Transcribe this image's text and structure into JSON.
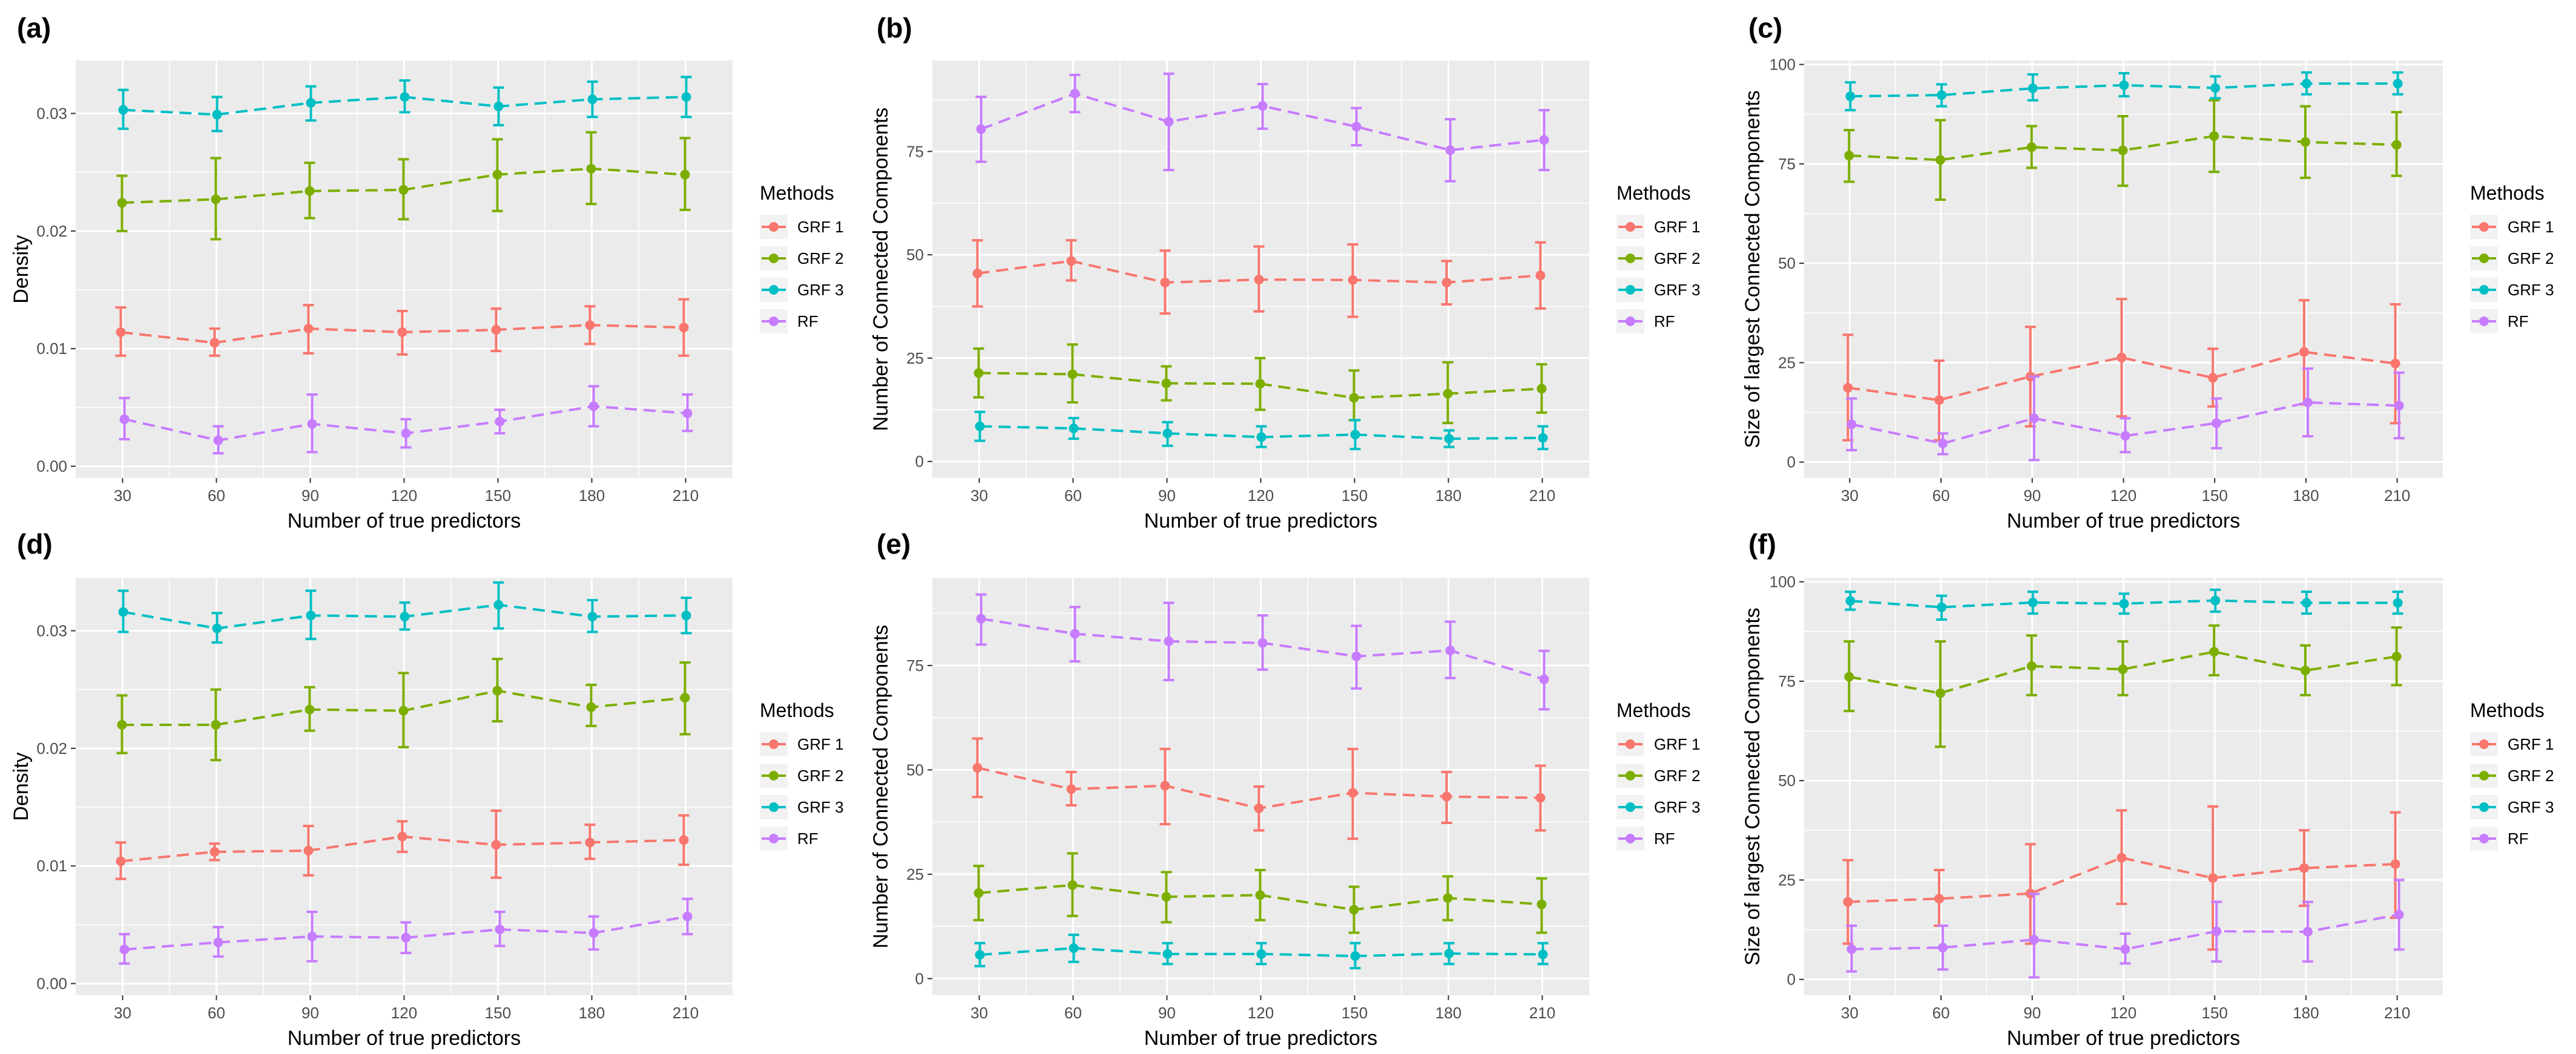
{
  "legend": {
    "title": "Methods",
    "entries": [
      "GRF 1",
      "GRF 2",
      "GRF 3",
      "RF"
    ]
  },
  "colors": {
    "GRF 1": "#F8766D",
    "GRF 2": "#7CAE00",
    "GRF 3": "#00BFC4",
    "RF": "#C77CFF",
    "panel_bg": "#EBEBEB",
    "grid": "#FFFFFF"
  },
  "chart_data": [
    {
      "panel_label": "(a)",
      "type": "line",
      "xlabel": "Number of true predictors",
      "ylabel": "Density",
      "categories": [
        30,
        60,
        90,
        120,
        150,
        180,
        210
      ],
      "ylim": [
        -0.001,
        0.0345
      ],
      "yticks": [
        0.0,
        0.01,
        0.02,
        0.03
      ],
      "ytick_labels": [
        "0.00",
        "0.01",
        "0.02",
        "0.03"
      ],
      "series": [
        {
          "name": "GRF 1",
          "values": [
            0.0114,
            0.0105,
            0.0117,
            0.0114,
            0.0116,
            0.012,
            0.0118
          ],
          "lower": [
            0.0094,
            0.0094,
            0.0096,
            0.0095,
            0.0098,
            0.0104,
            0.0094
          ],
          "upper": [
            0.0135,
            0.0117,
            0.0137,
            0.0132,
            0.0134,
            0.0136,
            0.0142
          ]
        },
        {
          "name": "GRF 2",
          "values": [
            0.0224,
            0.0227,
            0.0234,
            0.0235,
            0.0248,
            0.0253,
            0.0248
          ],
          "lower": [
            0.02,
            0.0193,
            0.0211,
            0.021,
            0.0217,
            0.0223,
            0.0218
          ],
          "upper": [
            0.0247,
            0.0262,
            0.0258,
            0.0261,
            0.0278,
            0.0284,
            0.0279
          ]
        },
        {
          "name": "GRF 3",
          "values": [
            0.0303,
            0.0299,
            0.0309,
            0.0314,
            0.0306,
            0.0312,
            0.0314
          ],
          "lower": [
            0.0287,
            0.0285,
            0.0294,
            0.0301,
            0.029,
            0.0297,
            0.0297
          ],
          "upper": [
            0.032,
            0.0314,
            0.0323,
            0.0328,
            0.0322,
            0.0327,
            0.0331
          ]
        },
        {
          "name": "RF",
          "values": [
            0.004,
            0.0022,
            0.0036,
            0.0028,
            0.0038,
            0.0051,
            0.0045
          ],
          "lower": [
            0.0023,
            0.0011,
            0.0012,
            0.0016,
            0.0028,
            0.0034,
            0.003
          ],
          "upper": [
            0.0058,
            0.0034,
            0.0061,
            0.004,
            0.0048,
            0.0068,
            0.0061
          ]
        }
      ]
    },
    {
      "panel_label": "(b)",
      "type": "line",
      "xlabel": "Number of true predictors",
      "ylabel": "Number of Connected Components",
      "categories": [
        30,
        60,
        90,
        120,
        150,
        180,
        210
      ],
      "ylim": [
        -4,
        97
      ],
      "yticks": [
        0,
        25,
        50,
        75
      ],
      "ytick_labels": [
        "0",
        "25",
        "50",
        "75"
      ],
      "series": [
        {
          "name": "GRF 1",
          "values": [
            45.5,
            48.5,
            43.3,
            44.0,
            43.9,
            43.3,
            45.0
          ],
          "lower": [
            37.5,
            43.8,
            35.8,
            36.3,
            35.0,
            38.0,
            37.0
          ],
          "upper": [
            53.5,
            53.5,
            51.0,
            52.0,
            52.5,
            48.5,
            53.0
          ]
        },
        {
          "name": "GRF 2",
          "values": [
            21.4,
            21.1,
            18.9,
            18.8,
            15.4,
            16.4,
            17.6
          ],
          "lower": [
            15.5,
            14.3,
            14.8,
            12.5,
            10.0,
            9.3,
            11.8
          ],
          "upper": [
            27.3,
            28.3,
            23.0,
            25.0,
            22.0,
            24.0,
            23.5
          ]
        },
        {
          "name": "GRF 3",
          "values": [
            8.5,
            8.0,
            6.8,
            5.9,
            6.5,
            5.5,
            5.7
          ],
          "lower": [
            5.0,
            5.5,
            3.8,
            3.5,
            3.0,
            3.5,
            3.0
          ],
          "upper": [
            12.0,
            10.5,
            9.5,
            8.5,
            10.0,
            7.5,
            8.5
          ]
        },
        {
          "name": "RF",
          "values": [
            80.4,
            89.0,
            82.2,
            86.0,
            81.0,
            75.3,
            77.8
          ],
          "lower": [
            72.5,
            84.5,
            70.5,
            80.5,
            76.5,
            67.8,
            70.5
          ],
          "upper": [
            88.2,
            93.5,
            93.8,
            91.3,
            85.5,
            82.8,
            85.0
          ]
        }
      ]
    },
    {
      "panel_label": "(c)",
      "type": "line",
      "xlabel": "Number of true predictors",
      "ylabel": "Size of largest Connected Components",
      "categories": [
        30,
        60,
        90,
        120,
        150,
        180,
        210
      ],
      "ylim": [
        -4,
        101
      ],
      "yticks": [
        0,
        25,
        50,
        75,
        100
      ],
      "ytick_labels": [
        "0",
        "25",
        "50",
        "75",
        "100"
      ],
      "series": [
        {
          "name": "GRF 1",
          "values": [
            18.7,
            15.6,
            21.5,
            26.3,
            21.2,
            27.7,
            24.8
          ],
          "lower": [
            5.5,
            5.5,
            9.0,
            11.5,
            14.0,
            14.5,
            9.8
          ],
          "upper": [
            32.0,
            25.5,
            34.0,
            41.0,
            28.5,
            40.7,
            39.7
          ]
        },
        {
          "name": "GRF 2",
          "values": [
            77.1,
            76.0,
            79.2,
            78.4,
            82.0,
            80.5,
            79.8
          ],
          "lower": [
            70.5,
            66.0,
            74.0,
            69.5,
            73.0,
            71.5,
            72.0
          ],
          "upper": [
            83.5,
            86.0,
            84.5,
            87.0,
            91.0,
            89.5,
            88.0
          ]
        },
        {
          "name": "GRF 3",
          "values": [
            92.0,
            92.3,
            94.0,
            94.8,
            94.1,
            95.2,
            95.2
          ],
          "lower": [
            88.5,
            89.5,
            91.0,
            92.0,
            91.5,
            92.5,
            92.5
          ],
          "upper": [
            95.5,
            95.0,
            97.5,
            97.8,
            97.0,
            98.0,
            98.0
          ]
        },
        {
          "name": "RF",
          "values": [
            9.5,
            4.7,
            11.0,
            6.6,
            9.8,
            15.0,
            14.2
          ],
          "lower": [
            3.0,
            2.0,
            0.5,
            2.5,
            3.5,
            6.5,
            6.0
          ],
          "upper": [
            16.0,
            7.2,
            21.5,
            11.0,
            16.0,
            23.5,
            22.5
          ]
        }
      ]
    },
    {
      "panel_label": "(d)",
      "type": "line",
      "xlabel": "Number of true predictors",
      "ylabel": "Density",
      "categories": [
        30,
        60,
        90,
        120,
        150,
        180,
        210
      ],
      "ylim": [
        -0.001,
        0.0345
      ],
      "yticks": [
        0.0,
        0.01,
        0.02,
        0.03
      ],
      "ytick_labels": [
        "0.00",
        "0.01",
        "0.02",
        "0.03"
      ],
      "series": [
        {
          "name": "GRF 1",
          "values": [
            0.0104,
            0.0112,
            0.0113,
            0.0125,
            0.0118,
            0.012,
            0.0122
          ],
          "lower": [
            0.0089,
            0.0105,
            0.0092,
            0.0112,
            0.009,
            0.0106,
            0.0101
          ],
          "upper": [
            0.012,
            0.0119,
            0.0134,
            0.0138,
            0.0147,
            0.0135,
            0.0143
          ]
        },
        {
          "name": "GRF 2",
          "values": [
            0.022,
            0.022,
            0.0233,
            0.0232,
            0.0249,
            0.0235,
            0.0243
          ],
          "lower": [
            0.0196,
            0.019,
            0.0215,
            0.0201,
            0.0223,
            0.0219,
            0.0212
          ],
          "upper": [
            0.0245,
            0.025,
            0.0252,
            0.0264,
            0.0276,
            0.0254,
            0.0273
          ]
        },
        {
          "name": "GRF 3",
          "values": [
            0.0316,
            0.0302,
            0.0313,
            0.0312,
            0.0322,
            0.0312,
            0.0313
          ],
          "lower": [
            0.0299,
            0.029,
            0.0293,
            0.0301,
            0.0302,
            0.0299,
            0.0298
          ],
          "upper": [
            0.0334,
            0.0315,
            0.0334,
            0.0324,
            0.0341,
            0.0326,
            0.0328
          ]
        },
        {
          "name": "RF",
          "values": [
            0.0029,
            0.0035,
            0.004,
            0.0039,
            0.0046,
            0.0043,
            0.0057
          ],
          "lower": [
            0.0017,
            0.0023,
            0.0019,
            0.0026,
            0.0032,
            0.0029,
            0.0042
          ],
          "upper": [
            0.0042,
            0.0048,
            0.0061,
            0.0052,
            0.0061,
            0.0057,
            0.0072
          ]
        }
      ]
    },
    {
      "panel_label": "(e)",
      "type": "line",
      "xlabel": "Number of true predictors",
      "ylabel": "Number of Connected Components",
      "categories": [
        30,
        60,
        90,
        120,
        150,
        180,
        210
      ],
      "ylim": [
        -4,
        96
      ],
      "yticks": [
        0,
        25,
        50,
        75
      ],
      "ytick_labels": [
        "0",
        "25",
        "50",
        "75"
      ],
      "series": [
        {
          "name": "GRF 1",
          "values": [
            50.5,
            45.4,
            46.2,
            40.8,
            44.5,
            43.6,
            43.3
          ],
          "lower": [
            43.5,
            41.5,
            37.0,
            35.5,
            33.5,
            37.3,
            35.5
          ],
          "upper": [
            57.5,
            49.5,
            55.0,
            46.0,
            55.0,
            49.5,
            51.0
          ]
        },
        {
          "name": "GRF 2",
          "values": [
            20.5,
            22.4,
            19.6,
            20.0,
            16.5,
            19.3,
            17.8
          ],
          "lower": [
            14.0,
            15.0,
            13.5,
            14.0,
            11.0,
            14.0,
            11.0
          ],
          "upper": [
            27.0,
            30.0,
            25.5,
            26.0,
            22.0,
            24.5,
            24.0
          ]
        },
        {
          "name": "GRF 3",
          "values": [
            5.7,
            7.3,
            5.9,
            5.9,
            5.4,
            6.0,
            5.8
          ],
          "lower": [
            3.0,
            4.0,
            3.5,
            3.5,
            2.5,
            3.5,
            3.5
          ],
          "upper": [
            8.5,
            10.5,
            8.5,
            8.5,
            8.5,
            8.5,
            8.5
          ]
        },
        {
          "name": "RF",
          "values": [
            86.2,
            82.6,
            80.8,
            80.4,
            77.2,
            78.6,
            71.7
          ],
          "lower": [
            80.0,
            76.0,
            71.5,
            74.0,
            69.5,
            72.0,
            64.5
          ],
          "upper": [
            92.0,
            89.0,
            90.0,
            87.0,
            84.5,
            85.5,
            78.5
          ]
        }
      ]
    },
    {
      "panel_label": "(f)",
      "type": "line",
      "xlabel": "Number of true predictors",
      "ylabel": "Size of largest Connected Components",
      "categories": [
        30,
        60,
        90,
        120,
        150,
        180,
        210
      ],
      "ylim": [
        -4,
        101
      ],
      "yticks": [
        0,
        25,
        50,
        75,
        100
      ],
      "ytick_labels": [
        "0",
        "25",
        "50",
        "75",
        "100"
      ],
      "series": [
        {
          "name": "GRF 1",
          "values": [
            19.5,
            20.3,
            21.6,
            30.6,
            25.5,
            28.0,
            29.0
          ],
          "lower": [
            9.0,
            13.5,
            9.0,
            19.0,
            7.5,
            18.5,
            15.5
          ],
          "upper": [
            30.0,
            27.5,
            34.0,
            42.5,
            43.5,
            37.5,
            42.0
          ]
        },
        {
          "name": "GRF 2",
          "values": [
            76.1,
            72.0,
            78.8,
            78.0,
            82.4,
            77.7,
            81.2
          ],
          "lower": [
            67.5,
            58.5,
            71.5,
            71.5,
            76.5,
            71.5,
            74.0
          ],
          "upper": [
            85.0,
            85.0,
            86.5,
            85.0,
            89.0,
            84.0,
            88.5
          ]
        },
        {
          "name": "GRF 3",
          "values": [
            95.2,
            93.6,
            94.8,
            94.5,
            95.3,
            94.7,
            94.7
          ],
          "lower": [
            93.0,
            90.5,
            92.0,
            92.0,
            92.5,
            92.0,
            92.0
          ],
          "upper": [
            97.5,
            96.5,
            97.5,
            97.0,
            98.0,
            97.5,
            97.5
          ]
        },
        {
          "name": "RF",
          "values": [
            7.6,
            8.0,
            10.0,
            7.6,
            12.1,
            12.0,
            16.3
          ],
          "lower": [
            2.0,
            2.5,
            0.5,
            4.0,
            4.5,
            4.5,
            7.5
          ],
          "upper": [
            13.5,
            13.5,
            21.5,
            11.5,
            19.5,
            19.5,
            25.0
          ]
        }
      ]
    }
  ]
}
